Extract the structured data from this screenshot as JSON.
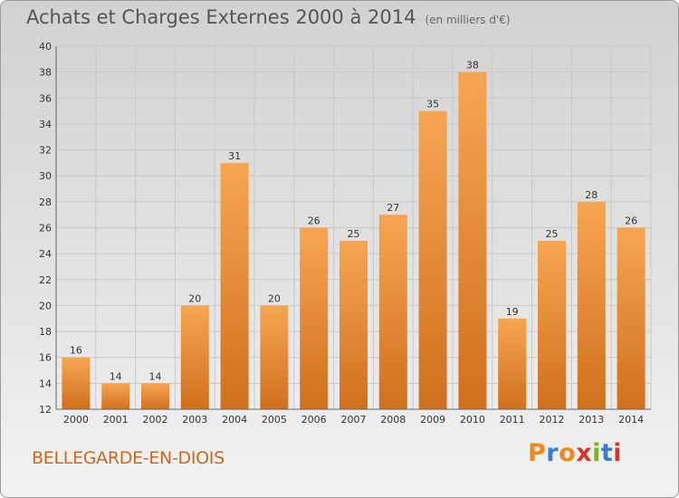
{
  "header": {
    "title": "Achats et Charges Externes 2000 à 2014",
    "subtitle": "(en milliers d'€)"
  },
  "footer": {
    "commune": "BELLEGARDE-EN-DIOIS",
    "logo": "Proxiti",
    "logo_colors": [
      "#f08a1c",
      "#3a7bd5",
      "#f08a1c",
      "#d7342c",
      "#7ab51d",
      "#3a7bd5",
      "#d7342c"
    ]
  },
  "colors": {
    "bar_light": "#f7a552",
    "bar_dark": "#d0701e",
    "grid": "#c8c8c8",
    "axis_text": "#333333"
  },
  "chart_data": {
    "type": "bar",
    "title": "Achats et Charges Externes 2000 à 2014",
    "subtitle": "(en milliers d'€)",
    "categories": [
      "2000",
      "2001",
      "2002",
      "2003",
      "2004",
      "2005",
      "2006",
      "2007",
      "2008",
      "2009",
      "2010",
      "2011",
      "2012",
      "2013",
      "2014"
    ],
    "values": [
      16,
      14,
      14,
      20,
      31,
      20,
      26,
      25,
      27,
      35,
      38,
      19,
      25,
      28,
      26
    ],
    "ylim": [
      12,
      40
    ],
    "yticks": [
      12,
      14,
      16,
      18,
      20,
      22,
      24,
      26,
      28,
      30,
      32,
      34,
      36,
      38,
      40
    ],
    "grid": true,
    "data_labels": true
  }
}
